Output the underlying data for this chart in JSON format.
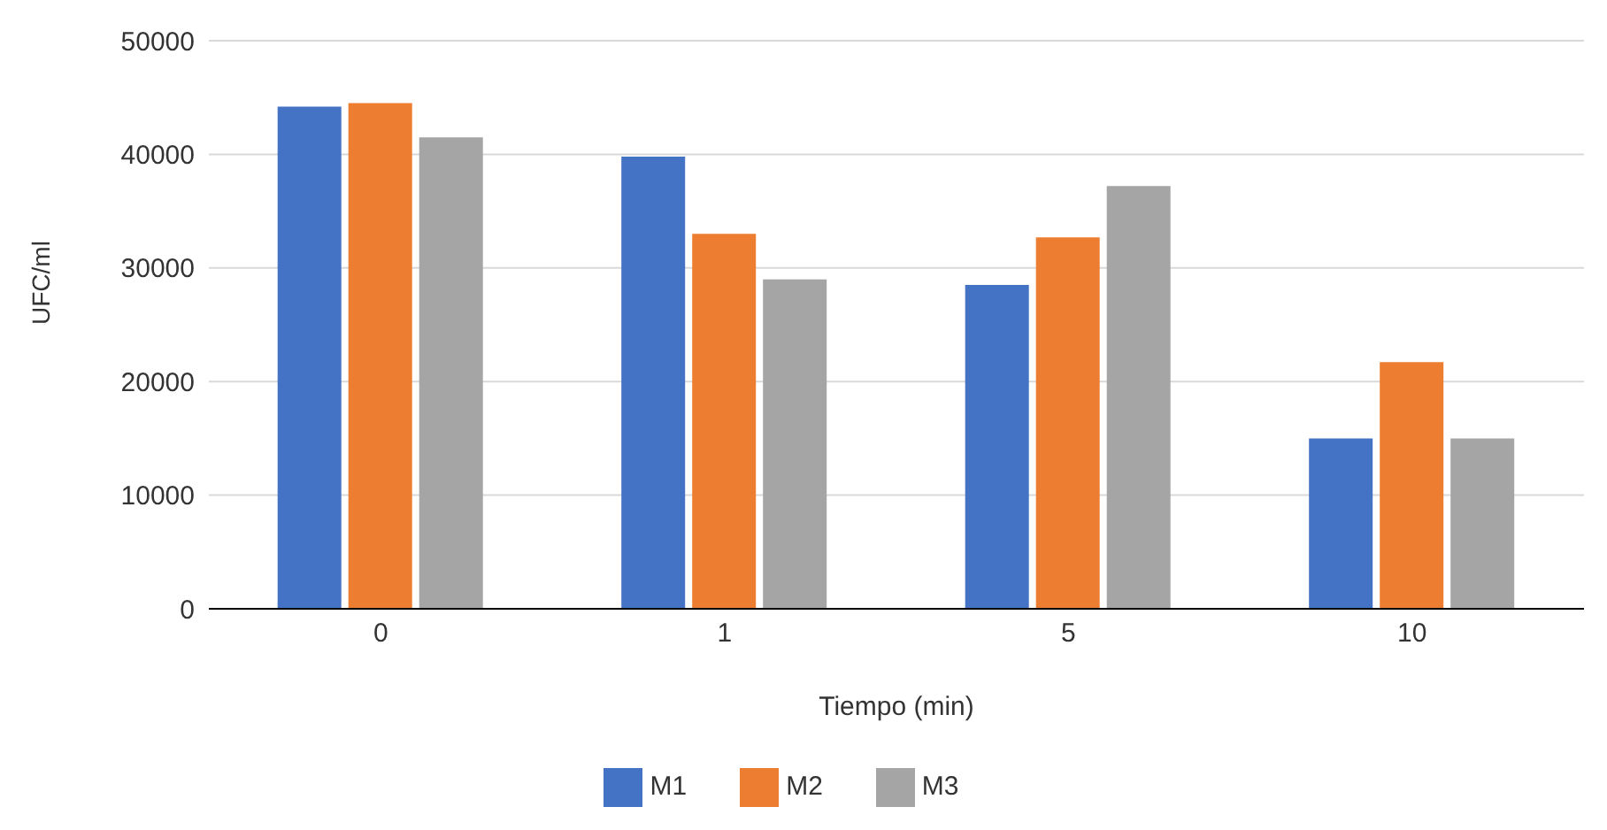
{
  "chart_data": {
    "type": "bar",
    "xlabel": "Tiempo (min)",
    "ylabel": "UFC/ml",
    "categories": [
      "0",
      "1",
      "5",
      "10"
    ],
    "series": [
      {
        "name": "M1",
        "color": "#4472c4",
        "values": [
          44200,
          39800,
          28500,
          15000
        ]
      },
      {
        "name": "M2",
        "color": "#ed7d31",
        "values": [
          44500,
          33000,
          32700,
          21700
        ]
      },
      {
        "name": "M3",
        "color": "#a5a5a5",
        "values": [
          41500,
          29000,
          37200,
          15000
        ]
      }
    ],
    "ylim": [
      0,
      50000
    ],
    "yticks": [
      0,
      10000,
      20000,
      30000,
      40000,
      50000
    ],
    "grid": "y",
    "legend": "bottom"
  }
}
